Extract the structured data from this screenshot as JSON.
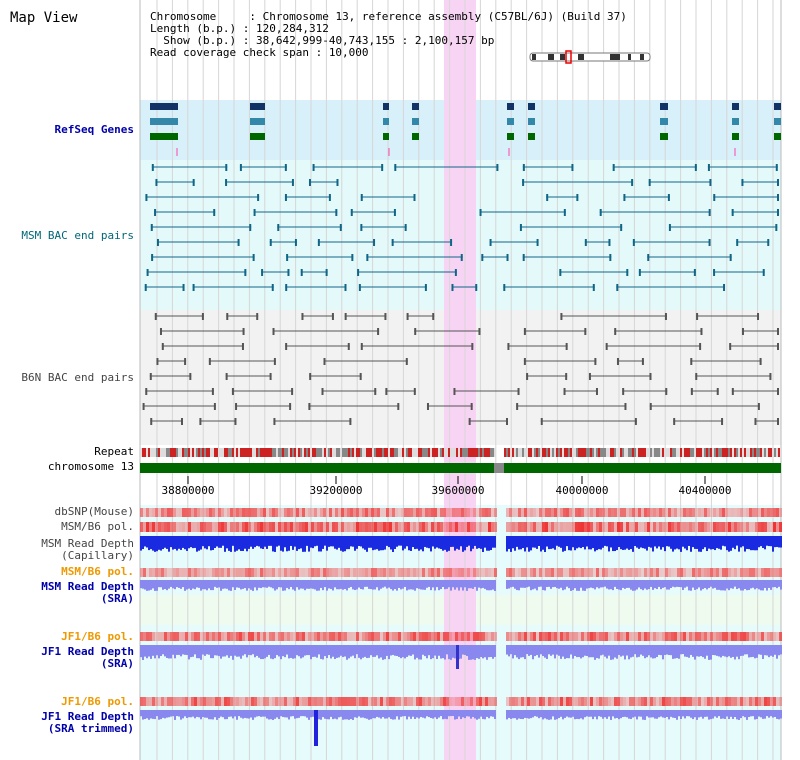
{
  "title": "Map View",
  "info": {
    "chromosome_label": "Chromosome     : ",
    "chromosome": "Chromosome 13, reference assembly (C57BL/6J) (Build 37)",
    "length_label": "Length (b.p.) : ",
    "length": "120,284,312",
    "show_label": "  Show (b.p.) : ",
    "show": "38,642,999-40,743,155 : 2,100,157 bp",
    "coverage_label": "Read coverage check span : ",
    "coverage": "10,000"
  },
  "tracks": {
    "refseq": "RefSeq Genes",
    "msm_bac": "MSM BAC end pairs",
    "b6n_bac": "B6N BAC end pairs",
    "repeat": "Repeat",
    "chromosome": "chromosome 13",
    "dbsnp": "dbSNP(Mouse)",
    "msm_pol_1": "MSM/B6 pol.",
    "msm_depth_cap_1": "MSM Read Depth",
    "msm_depth_cap_2": "(Capillary)",
    "msm_pol_2": "MSM/B6 pol.",
    "msm_depth_sra_1": "MSM Read Depth",
    "msm_depth_sra_2": "(SRA)",
    "jf1_pol_1": "JF1/B6 pol.",
    "jf1_depth_sra_1": "JF1 Read Depth",
    "jf1_depth_sra_2": "(SRA)",
    "jf1_pol_2": "JF1/B6 pol.",
    "jf1_depth_trim_1": "JF1 Read Depth",
    "jf1_depth_trim_2": "(SRA trimmed)"
  },
  "axis": {
    "ticks": [
      "38800000",
      "39200000",
      "39600000",
      "40000000",
      "40400000"
    ]
  },
  "colors": {
    "highlight": "#f8d4f4",
    "refseq_band": "#d8f0fa",
    "msm_band": "#e4fafa",
    "b6n_band": "#f2f2f2",
    "chromosome_bar": "#006600",
    "depth_capillary": "#1a2ae0",
    "depth_sra": "#8888ee",
    "pol": "#ee4444"
  }
}
